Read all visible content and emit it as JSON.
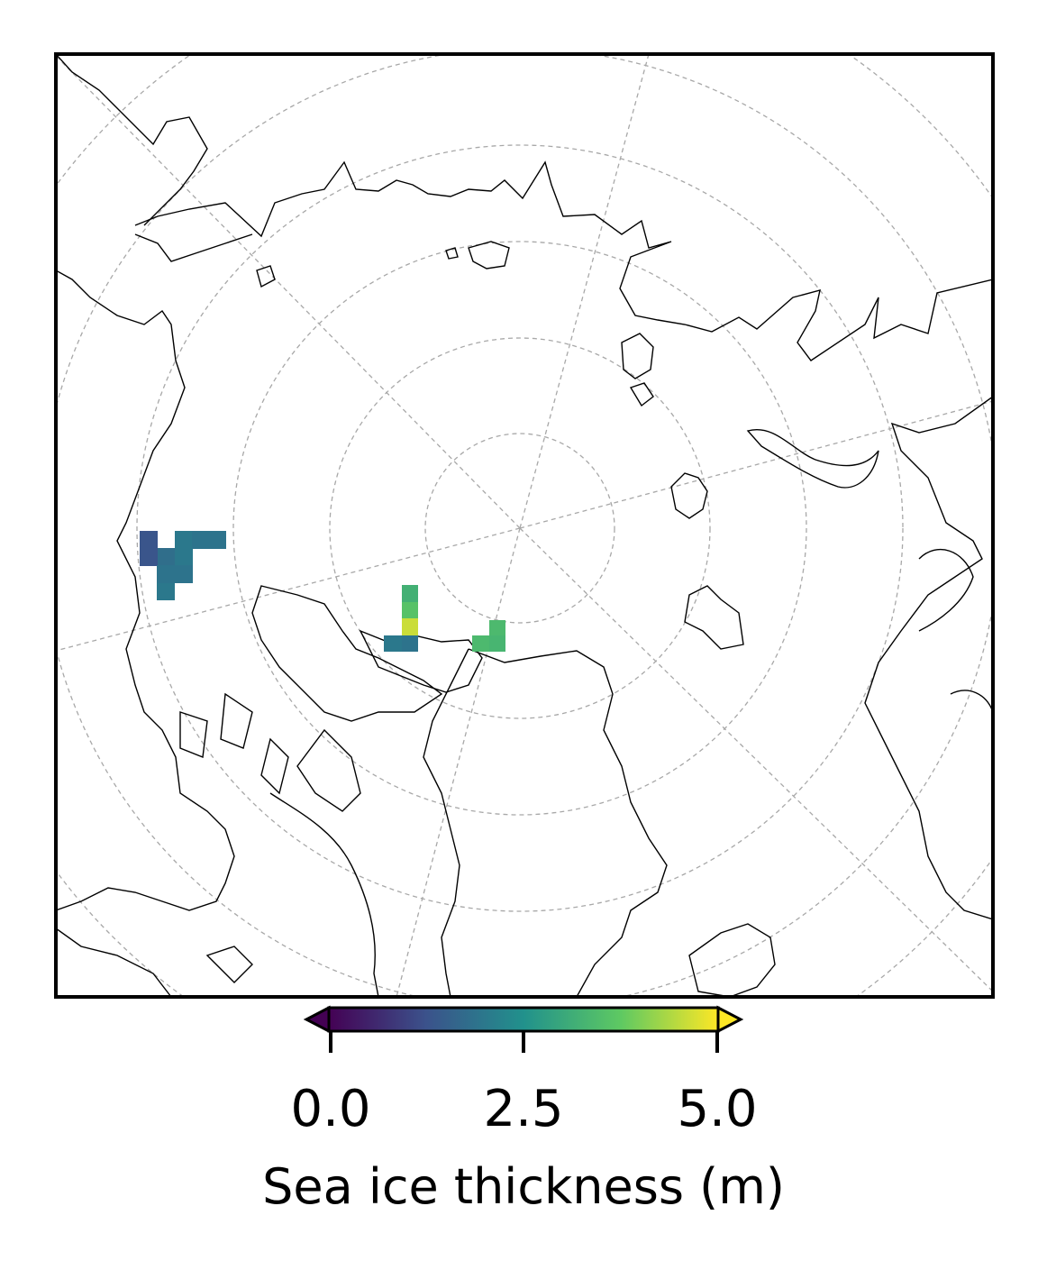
{
  "map": {
    "projection": "north-polar-stereographic",
    "gridlines": "dashed grey",
    "coastlines": "black thin"
  },
  "colorbar": {
    "label": "Sea ice thickness (m)",
    "ticks": [
      "0.0",
      "2.5",
      "5.0"
    ],
    "vmin": 0.0,
    "vmax": 5.0,
    "extend": "both",
    "colormap": "viridis",
    "colors": [
      "#440154",
      "#3b528b",
      "#21918c",
      "#5ec962",
      "#fde725"
    ]
  },
  "data_cells": [
    {
      "value": 1.3
    },
    {
      "value": 2.0
    },
    {
      "value": 1.9
    },
    {
      "value": 1.9
    },
    {
      "value": 1.8
    },
    {
      "value": 1.3
    },
    {
      "value": 1.9
    },
    {
      "value": 2.0
    },
    {
      "value": 1.9
    },
    {
      "value": 2.0
    },
    {
      "value": 1.9
    },
    {
      "value": 3.2
    },
    {
      "value": 3.6
    },
    {
      "value": 4.6
    },
    {
      "value": 3.4
    },
    {
      "value": 1.9
    },
    {
      "value": 1.9
    },
    {
      "value": 2.0
    },
    {
      "value": 3.4
    },
    {
      "value": 3.4
    },
    {
      "value": 3.3
    }
  ]
}
